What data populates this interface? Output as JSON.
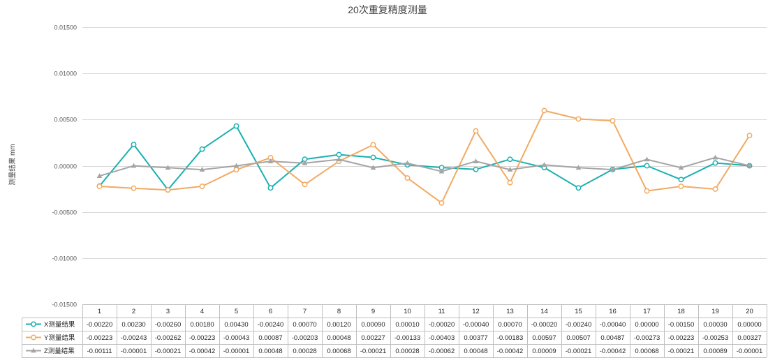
{
  "chart_data": {
    "type": "line",
    "title": "20次重复精度测量",
    "ylabel": "测量结果 mm",
    "ylim": [
      -0.015,
      0.015
    ],
    "yticks": [
      "0.01500",
      "0.01000",
      "0.00500",
      "0.00000",
      "-0.00500",
      "-0.01000",
      "-0.01500"
    ],
    "ytick_values": [
      0.015,
      0.01,
      0.005,
      0,
      -0.005,
      -0.01,
      -0.015
    ],
    "grid": true,
    "legend": "data-table",
    "categories": [
      "1",
      "2",
      "3",
      "4",
      "5",
      "6",
      "7",
      "8",
      "9",
      "10",
      "11",
      "12",
      "13",
      "14",
      "15",
      "16",
      "17",
      "18",
      "19",
      "20"
    ],
    "series": [
      {
        "name": "X测量结果",
        "color": "#1AB0B0",
        "marker": "circle",
        "values": [
          -0.0022,
          0.0023,
          -0.0026,
          0.0018,
          0.0043,
          -0.0024,
          0.0007,
          0.0012,
          0.0009,
          0.0001,
          -0.0002,
          -0.0004,
          0.0007,
          -0.0002,
          -0.0024,
          -0.0004,
          0.0,
          -0.0015,
          0.0003,
          0.0
        ],
        "labels": [
          "-0.00220",
          "0.00230",
          "-0.00260",
          "0.00180",
          "0.00430",
          "-0.00240",
          "0.00070",
          "0.00120",
          "0.00090",
          "0.00010",
          "-0.00020",
          "-0.00040",
          "0.00070",
          "-0.00020",
          "-0.00240",
          "-0.00040",
          "0.00000",
          "-0.00150",
          "0.00030",
          "0.00000"
        ]
      },
      {
        "name": "Y测量结果",
        "color": "#F2AA61",
        "marker": "circle",
        "values": [
          -0.00223,
          -0.00243,
          -0.00262,
          -0.00223,
          -0.00043,
          0.00087,
          -0.00203,
          0.00048,
          0.00227,
          -0.00133,
          -0.00403,
          0.00377,
          -0.00183,
          0.00597,
          0.00507,
          0.00487,
          -0.00273,
          -0.00223,
          -0.00253,
          0.00327
        ],
        "labels": [
          "-0.00223",
          "-0.00243",
          "-0.00262",
          "-0.00223",
          "-0.00043",
          "0.00087",
          "-0.00203",
          "0.00048",
          "0.00227",
          "-0.00133",
          "-0.00403",
          "0.00377",
          "-0.00183",
          "0.00597",
          "0.00507",
          "0.00487",
          "-0.00273",
          "-0.00223",
          "-0.00253",
          "0.00327"
        ]
      },
      {
        "name": "Z测量结果",
        "color": "#A5A5A5",
        "marker": "triangle",
        "values": [
          -0.00111,
          -1e-05,
          -0.00021,
          -0.00042,
          -1e-05,
          0.00048,
          0.00028,
          0.00068,
          -0.00021,
          0.00028,
          -0.00062,
          0.00048,
          -0.00042,
          9e-05,
          -0.00021,
          -0.00042,
          0.00068,
          -0.00021,
          0.00089,
          -1e-05
        ],
        "labels": [
          "-0.00111",
          "-0.00001",
          "-0.00021",
          "-0.00042",
          "-0.00001",
          "0.00048",
          "0.00028",
          "0.00068",
          "-0.00021",
          "0.00028",
          "-0.00062",
          "0.00048",
          "-0.00042",
          "0.00009",
          "-0.00021",
          "-0.00042",
          "0.00068",
          "-0.00021",
          "0.00089",
          "-0.00001"
        ]
      }
    ]
  }
}
